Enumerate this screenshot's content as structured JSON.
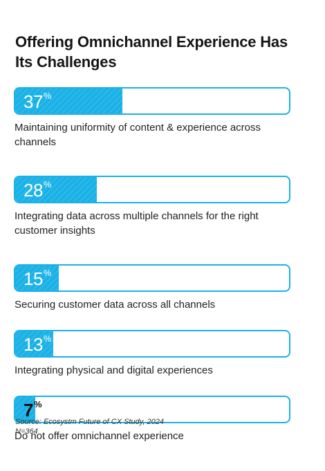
{
  "chart_data": {
    "type": "bar",
    "title": "Offering Omnichannel Experience Has Its Challenges",
    "unit": "%",
    "orientation": "horizontal",
    "xlim": [
      0,
      100
    ],
    "categories": [
      "Maintaining uniformity of content & experience across channels",
      "Integrating data across multiple channels for the right customer insights",
      "Securing customer data across all channels",
      "Integrating physical and digital experiences",
      "Do not offer omnichannel experience"
    ],
    "values": [
      37,
      28,
      15,
      13,
      7
    ],
    "bar_color": "#1ab1e6"
  },
  "footer": {
    "source": "Source: Ecosystm Future of CX Study, 2024",
    "n": "N=364"
  }
}
